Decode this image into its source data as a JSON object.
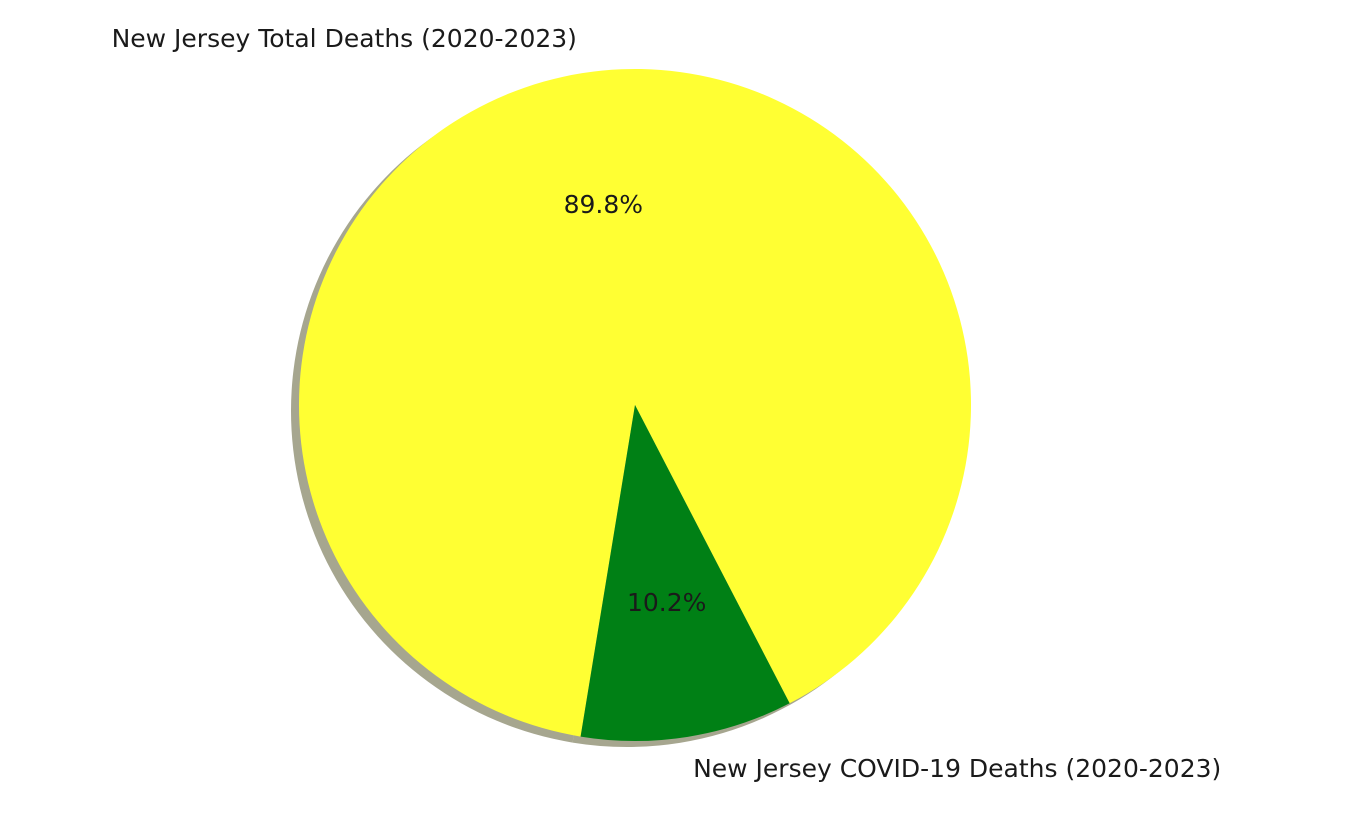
{
  "chart_data": {
    "type": "pie",
    "slices": [
      {
        "label": "New Jersey Total Deaths (2020-2023)",
        "value": 89.8,
        "pct_text": "89.8%",
        "color": "#ffff33"
      },
      {
        "label": "New Jersey COVID-19 Deaths (2020-2023)",
        "value": 10.2,
        "pct_text": "10.2%",
        "color": "#008015"
      }
    ],
    "shadow": true,
    "start_angle_deg": 0,
    "direction": "counterclockwise",
    "legend": "none"
  }
}
